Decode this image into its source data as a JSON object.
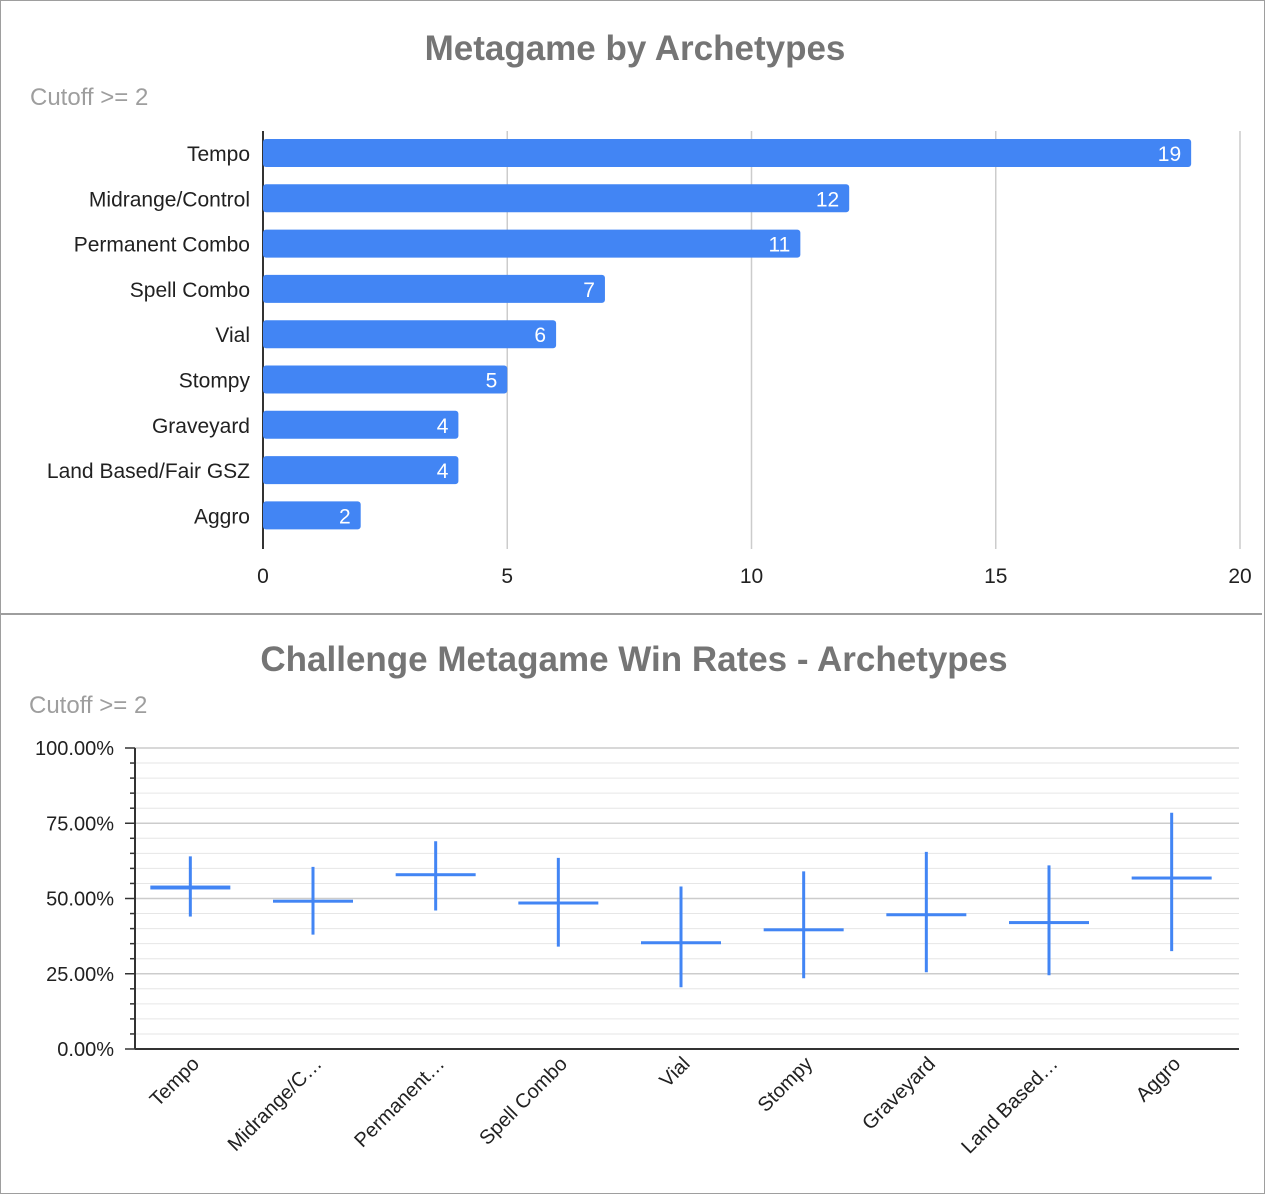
{
  "chart_data": [
    {
      "type": "bar",
      "orientation": "horizontal",
      "title": "Metagame by Archetypes",
      "subtitle": "Cutoff >= 2",
      "categories": [
        "Tempo",
        "Midrange/Control",
        "Permanent Combo",
        "Spell Combo",
        "Vial",
        "Stompy",
        "Graveyard",
        "Land Based/Fair GSZ",
        "Aggro"
      ],
      "values": [
        19,
        12,
        11,
        7,
        6,
        5,
        4,
        4,
        2
      ],
      "xlim": [
        0,
        20
      ],
      "xticks": [
        "0",
        "5",
        "10",
        "15",
        "20"
      ],
      "grid": true,
      "data_labels": true,
      "bar_color": "#4285f4"
    },
    {
      "type": "candlestick",
      "title": "Challenge Metagame Win Rates - Archetypes",
      "subtitle": "Cutoff >= 2",
      "categories": [
        "Tempo",
        "Midrange/Control",
        "Permanent Combo",
        "Spell Combo",
        "Vial",
        "Stompy",
        "Graveyard",
        "Land Based/Fair GSZ",
        "Aggro"
      ],
      "category_tick_labels": [
        "Tempo",
        "Midrange/C…",
        "Permanent…",
        "Spell Combo",
        "Vial",
        "Stompy",
        "Graveyard",
        "Land Based…",
        "Aggro"
      ],
      "low": [
        44.0,
        38.0,
        46.0,
        34.0,
        20.5,
        23.5,
        25.5,
        24.5,
        32.5
      ],
      "open": [
        53.0,
        48.8,
        57.6,
        48.2,
        35.2,
        39.5,
        44.5,
        41.5,
        56.7
      ],
      "close": [
        54.3,
        49.6,
        58.4,
        49.0,
        35.8,
        40.1,
        45.1,
        42.5,
        57.3
      ],
      "high": [
        64.0,
        60.5,
        69.0,
        63.5,
        54.0,
        59.0,
        65.5,
        61.0,
        78.5
      ],
      "ylim": [
        0,
        100
      ],
      "yticks": [
        "0.00%",
        "25.00%",
        "50.00%",
        "75.00%",
        "100.00%"
      ],
      "grid": true,
      "color": "#4285f4"
    }
  ]
}
